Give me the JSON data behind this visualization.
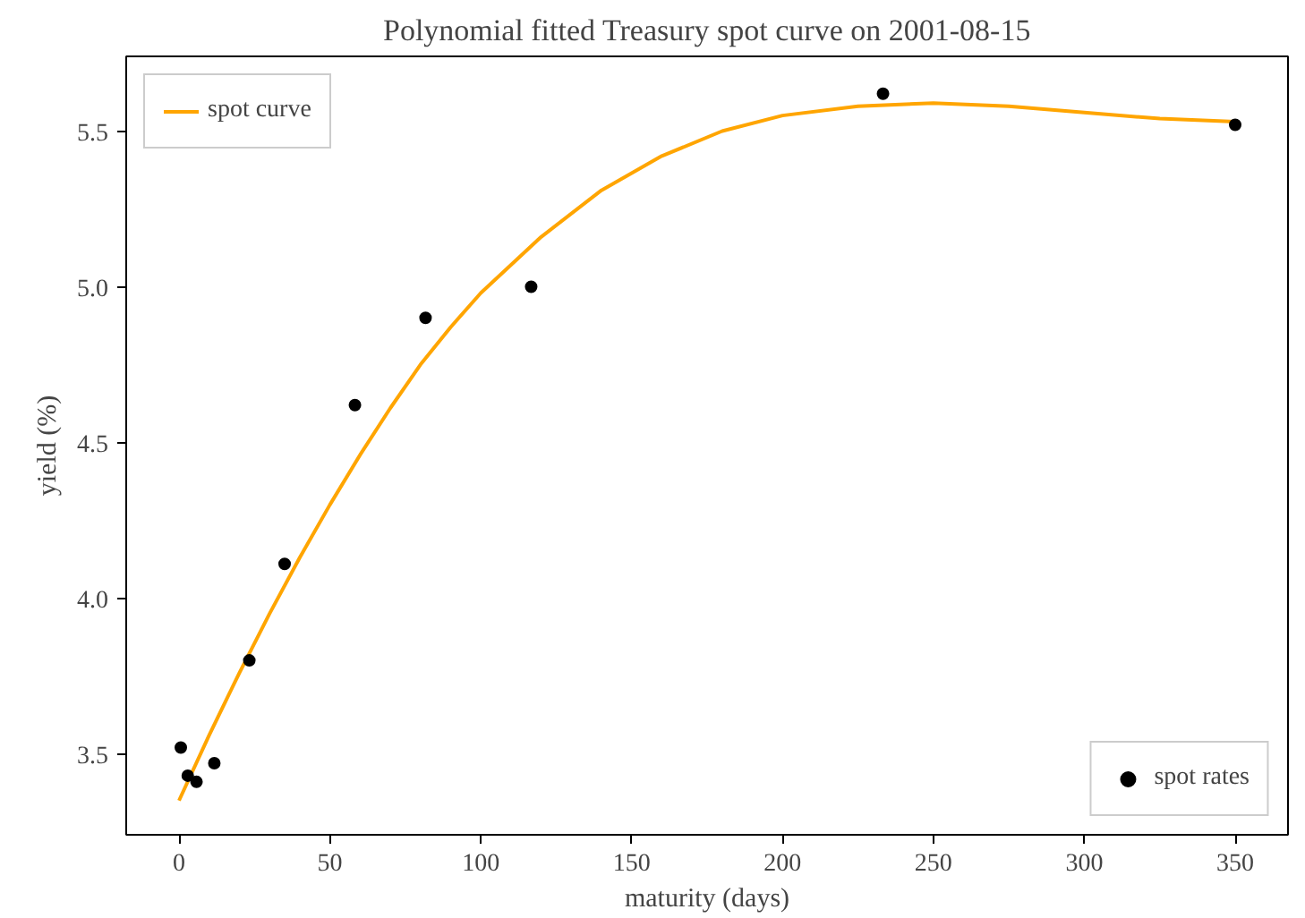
{
  "chart_data": {
    "type": "line",
    "title": "Polynomial fitted Treasury spot curve on 2001-08-15",
    "xlabel": "maturity (days)",
    "ylabel": "yield (%)",
    "xlim": [
      -17.5,
      367.5
    ],
    "xticks": [
      0,
      50,
      100,
      150,
      200,
      250,
      300,
      350
    ],
    "ylim": [
      3.24,
      5.74
    ],
    "yticks": [
      3.5,
      {
        "value": 4,
        "label": "4.0"
      },
      4.5,
      {
        "value": 5,
        "label": "5.0"
      },
      5.5
    ],
    "grid": false,
    "legend": [
      "top left",
      "bottom right"
    ],
    "series": [
      {
        "name": "spot curve",
        "color": "#ffa500",
        "x": [
          0,
          10,
          20,
          30,
          40,
          50,
          60,
          70,
          80,
          90,
          100,
          120,
          140,
          160,
          180,
          200,
          225,
          250,
          275,
          300,
          325,
          350
        ],
        "values": [
          3.35,
          3.56,
          3.76,
          3.95,
          4.13,
          4.3,
          4.46,
          4.61,
          4.75,
          4.87,
          4.98,
          5.16,
          5.31,
          5.42,
          5.5,
          5.55,
          5.58,
          5.59,
          5.58,
          5.56,
          5.54,
          5.53
        ]
      },
      {
        "name": "spot rates",
        "type": "scatter",
        "marker": "circle",
        "color": "#000000",
        "x": [
          0.6,
          2.9,
          5.8,
          11.7,
          23.3,
          35,
          58.3,
          81.7,
          116.7,
          233.3,
          350
        ],
        "values": [
          3.52,
          3.43,
          3.41,
          3.47,
          3.8,
          4.11,
          4.62,
          4.9,
          5.0,
          5.62,
          5.52
        ]
      }
    ]
  }
}
